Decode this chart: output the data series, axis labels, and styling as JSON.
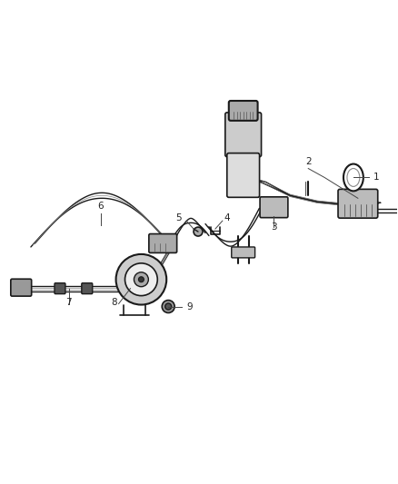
{
  "background_color": "#ffffff",
  "fig_width": 4.38,
  "fig_height": 5.33,
  "dpi": 100,
  "line_color": "#1a1a1a",
  "light_gray": "#888888",
  "mid_gray": "#555555",
  "dark_gray": "#333333",
  "label_color": "#222222",
  "annotation_color": "#666666"
}
